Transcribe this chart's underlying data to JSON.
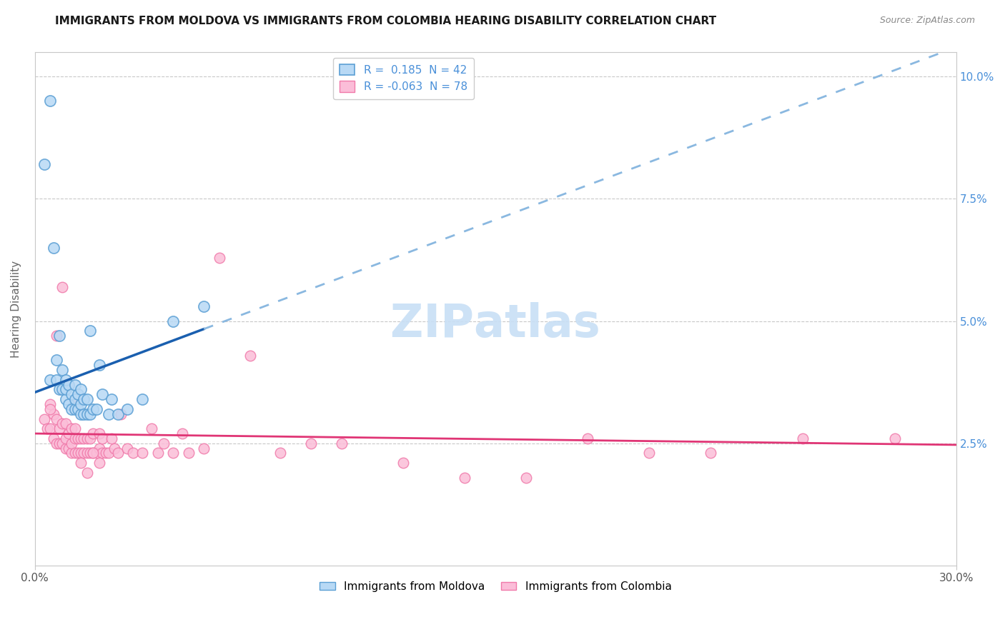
{
  "title": "IMMIGRANTS FROM MOLDOVA VS IMMIGRANTS FROM COLOMBIA HEARING DISABILITY CORRELATION CHART",
  "source": "Source: ZipAtlas.com",
  "ylabel": "Hearing Disability",
  "ytick_labels": [
    "2.5%",
    "5.0%",
    "7.5%",
    "10.0%"
  ],
  "ytick_vals": [
    0.025,
    0.05,
    0.075,
    0.1
  ],
  "xtick_labels": [
    "0.0%",
    "30.0%"
  ],
  "xtick_vals": [
    0.0,
    0.3
  ],
  "xlim": [
    0.0,
    0.3
  ],
  "ylim": [
    0.0,
    0.105
  ],
  "moldova_R": 0.185,
  "moldova_N": 42,
  "colombia_R": -0.063,
  "colombia_N": 78,
  "moldova_face": "#b8d9f5",
  "moldova_edge": "#5b9fd4",
  "colombia_face": "#fbbdd8",
  "colombia_edge": "#f07aaa",
  "moldova_line_color": "#1a5faf",
  "moldova_dash_color": "#8ab8e0",
  "colombia_line_color": "#e03575",
  "grid_color": "#c8c8c8",
  "bg_color": "#ffffff",
  "title_color": "#1a1a1a",
  "source_color": "#888888",
  "right_tick_color": "#4a90d9",
  "moldova_x": [
    0.003,
    0.005,
    0.005,
    0.006,
    0.007,
    0.007,
    0.008,
    0.008,
    0.009,
    0.009,
    0.01,
    0.01,
    0.01,
    0.011,
    0.011,
    0.012,
    0.012,
    0.013,
    0.013,
    0.013,
    0.014,
    0.014,
    0.015,
    0.015,
    0.015,
    0.016,
    0.016,
    0.017,
    0.017,
    0.018,
    0.018,
    0.019,
    0.02,
    0.021,
    0.022,
    0.024,
    0.025,
    0.027,
    0.03,
    0.035,
    0.045,
    0.055
  ],
  "moldova_y": [
    0.082,
    0.095,
    0.038,
    0.065,
    0.038,
    0.042,
    0.036,
    0.047,
    0.036,
    0.04,
    0.034,
    0.036,
    0.038,
    0.033,
    0.037,
    0.032,
    0.035,
    0.032,
    0.034,
    0.037,
    0.032,
    0.035,
    0.031,
    0.033,
    0.036,
    0.031,
    0.034,
    0.031,
    0.034,
    0.031,
    0.048,
    0.032,
    0.032,
    0.041,
    0.035,
    0.031,
    0.034,
    0.031,
    0.032,
    0.034,
    0.05,
    0.053
  ],
  "colombia_x": [
    0.003,
    0.004,
    0.005,
    0.005,
    0.006,
    0.006,
    0.007,
    0.007,
    0.008,
    0.008,
    0.009,
    0.009,
    0.01,
    0.01,
    0.01,
    0.011,
    0.011,
    0.012,
    0.012,
    0.012,
    0.013,
    0.013,
    0.013,
    0.014,
    0.014,
    0.015,
    0.015,
    0.016,
    0.016,
    0.017,
    0.017,
    0.018,
    0.018,
    0.019,
    0.019,
    0.02,
    0.021,
    0.021,
    0.022,
    0.022,
    0.023,
    0.024,
    0.025,
    0.026,
    0.027,
    0.028,
    0.03,
    0.032,
    0.035,
    0.038,
    0.04,
    0.042,
    0.045,
    0.048,
    0.05,
    0.055,
    0.06,
    0.07,
    0.08,
    0.09,
    0.1,
    0.12,
    0.14,
    0.16,
    0.18,
    0.2,
    0.22,
    0.25,
    0.28,
    0.005,
    0.007,
    0.009,
    0.011,
    0.013,
    0.015,
    0.017,
    0.019,
    0.021
  ],
  "colombia_y": [
    0.03,
    0.028,
    0.028,
    0.033,
    0.026,
    0.031,
    0.025,
    0.03,
    0.025,
    0.028,
    0.025,
    0.029,
    0.024,
    0.026,
    0.029,
    0.024,
    0.027,
    0.023,
    0.025,
    0.028,
    0.023,
    0.026,
    0.028,
    0.023,
    0.026,
    0.023,
    0.026,
    0.023,
    0.026,
    0.023,
    0.026,
    0.023,
    0.026,
    0.023,
    0.027,
    0.023,
    0.024,
    0.027,
    0.023,
    0.026,
    0.023,
    0.023,
    0.026,
    0.024,
    0.023,
    0.031,
    0.024,
    0.023,
    0.023,
    0.028,
    0.023,
    0.025,
    0.023,
    0.027,
    0.023,
    0.024,
    0.063,
    0.043,
    0.023,
    0.025,
    0.025,
    0.021,
    0.018,
    0.018,
    0.026,
    0.023,
    0.023,
    0.026,
    0.026,
    0.032,
    0.047,
    0.057,
    0.037,
    0.033,
    0.021,
    0.019,
    0.023,
    0.021
  ]
}
